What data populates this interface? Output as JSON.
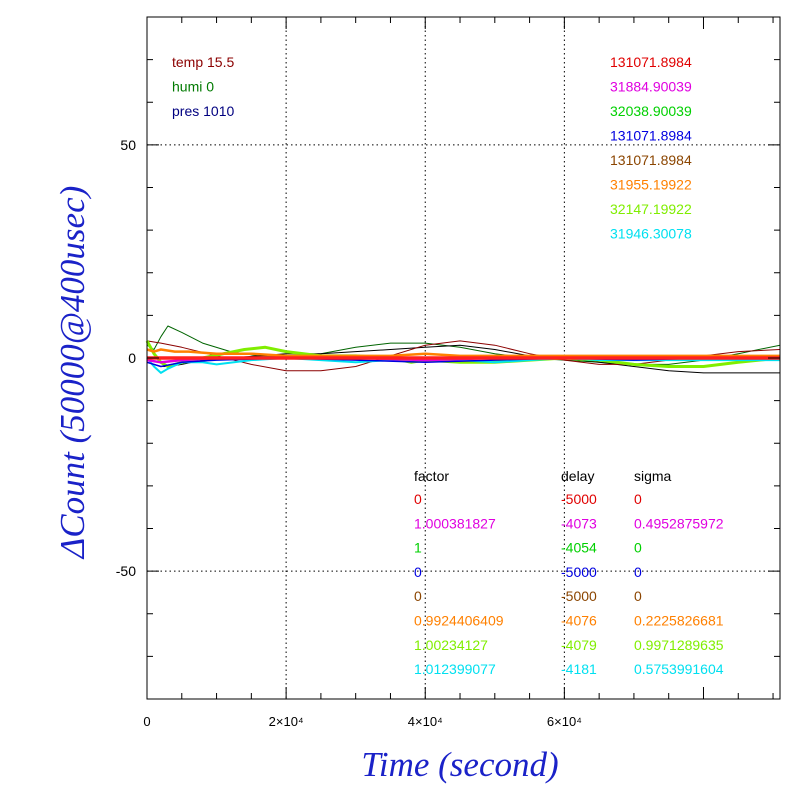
{
  "chart_data": {
    "type": "line",
    "xlabel": "Time (second)",
    "ylabel": "ΔCount (50000@400usec)",
    "xlim": [
      0,
      91000
    ],
    "ylim": [
      -80,
      80
    ],
    "x_ticks": [
      {
        "value": 0,
        "label": "0"
      },
      {
        "value": 20000,
        "label": "2×10⁴"
      },
      {
        "value": 40000,
        "label": "4×10⁴"
      },
      {
        "value": 60000,
        "label": "6×10⁴"
      }
    ],
    "y_ticks": [
      {
        "value": 50,
        "label": "50"
      },
      {
        "value": 0,
        "label": "0"
      },
      {
        "value": -50,
        "label": "-50"
      }
    ],
    "grid": "dotted at major ticks",
    "env_labels": [
      {
        "text": "temp 15.5",
        "color": "#8b0000"
      },
      {
        "text": "humi 0",
        "color": "#007a00"
      },
      {
        "text": "pres 1010",
        "color": "#000080"
      }
    ],
    "channel_values": [
      {
        "text": "131071.8984",
        "color": "#e00000"
      },
      {
        "text": "31884.90039",
        "color": "#e000e0"
      },
      {
        "text": "32038.90039",
        "color": "#00d000"
      },
      {
        "text": "131071.8984",
        "color": "#0000e0"
      },
      {
        "text": "131071.8984",
        "color": "#8b4500"
      },
      {
        "text": "31955.19922",
        "color": "#ff8000"
      },
      {
        "text": "32147.19922",
        "color": "#80ee00"
      },
      {
        "text": "31946.30078",
        "color": "#00e0f0"
      }
    ],
    "param_table": {
      "headers": [
        "factor",
        "delay",
        "sigma"
      ],
      "rows": [
        {
          "factor": "0",
          "delay": "-5000",
          "sigma": "0",
          "color": "#e00000"
        },
        {
          "factor": "1.000381827",
          "delay": "-4073",
          "sigma": "0.4952875972",
          "color": "#e000e0"
        },
        {
          "factor": "1",
          "delay": "-4054",
          "sigma": "0",
          "color": "#00d000"
        },
        {
          "factor": "0",
          "delay": "-5000",
          "sigma": "0",
          "color": "#0000e0"
        },
        {
          "factor": "0",
          "delay": "-5000",
          "sigma": "0",
          "color": "#8b4500"
        },
        {
          "factor": "0.9924406409",
          "delay": "-4076",
          "sigma": "0.2225826681",
          "color": "#ff8000"
        },
        {
          "factor": "1.00234127",
          "delay": "-4079",
          "sigma": "0.9971289635",
          "color": "#80ee00"
        },
        {
          "factor": "1.012399077",
          "delay": "-4181",
          "sigma": "0.5753991604",
          "color": "#00e0f0"
        }
      ]
    },
    "series": [
      {
        "color": "#006400",
        "width": 1,
        "x": [
          0,
          1000,
          2000,
          3000,
          5000,
          8000,
          12000,
          16000,
          20000,
          25000,
          30000,
          35000,
          40000,
          45000,
          50000,
          55000,
          60000,
          65000,
          70000,
          75000,
          80000,
          85000,
          91000
        ],
        "y": [
          3,
          2,
          5,
          7.5,
          6,
          3.5,
          1.5,
          0.5,
          0.5,
          1,
          2.5,
          3.5,
          3.5,
          2.5,
          1,
          0,
          -0.5,
          -1,
          -1.5,
          -1.5,
          -0.5,
          1,
          3
        ]
      },
      {
        "color": "#000000",
        "width": 1,
        "x": [
          0,
          1000,
          2000,
          3000,
          5000,
          8000,
          12000,
          16000,
          20000,
          25000,
          30000,
          35000,
          40000,
          45000,
          50000,
          55000,
          60000,
          65000,
          70000,
          75000,
          80000,
          85000,
          91000
        ],
        "y": [
          -1,
          -1.5,
          -2,
          -2,
          -1.5,
          -0.5,
          0,
          0.5,
          1,
          1,
          1.5,
          2,
          2.5,
          3,
          2,
          0.5,
          0,
          -1,
          -2,
          -3,
          -3.5,
          -3.5,
          -3.5
        ]
      },
      {
        "color": "#8b0000",
        "width": 1,
        "x": [
          0,
          2000,
          5000,
          10000,
          15000,
          20000,
          25000,
          30000,
          35000,
          40000,
          45000,
          50000,
          55000,
          60000,
          65000,
          70000,
          75000,
          80000,
          85000,
          91000
        ],
        "y": [
          4,
          3.5,
          2.5,
          0.5,
          -1.5,
          -3,
          -3,
          -2,
          0.5,
          3,
          4,
          3,
          1,
          -0.5,
          -1.5,
          -1.5,
          -0.5,
          0.5,
          1.5,
          2
        ]
      },
      {
        "color": "#80ee00",
        "width": 3,
        "x": [
          0,
          1000,
          2000,
          3000,
          5000,
          8000,
          11000,
          14000,
          17000,
          20000,
          25000,
          30000,
          35000,
          38000,
          40000,
          45000,
          50000,
          55000,
          60000,
          65000,
          70000,
          75000,
          80000,
          85000,
          91000
        ],
        "y": [
          4,
          1,
          -1,
          -2,
          -1,
          0,
          1,
          2,
          2.5,
          1.5,
          0.5,
          0.5,
          0,
          -1,
          -0.5,
          -1,
          -1,
          -0.5,
          0,
          -0.5,
          -1.5,
          -2,
          -2,
          -1,
          0
        ]
      },
      {
        "color": "#00e0f0",
        "width": 2,
        "x": [
          0,
          1000,
          2000,
          3000,
          5000,
          8000,
          10000,
          15000,
          20000,
          25000,
          30000,
          35000,
          40000,
          45000,
          50000,
          55000,
          60000,
          65000,
          70000,
          75000,
          80000,
          85000,
          91000
        ],
        "y": [
          0,
          -2,
          -3.5,
          -2.5,
          -1,
          -1,
          -1.5,
          -0.5,
          0,
          -0.5,
          -1,
          -0.5,
          0,
          -0.5,
          -1,
          -0.5,
          0,
          -0.5,
          -0.5,
          -0.5,
          -0.5,
          -0.5,
          -0.5
        ]
      },
      {
        "color": "#0000e0",
        "width": 1.5,
        "x": [
          0,
          2000,
          5000,
          10000,
          20000,
          30000,
          40000,
          50000,
          60000,
          70000,
          80000,
          91000
        ],
        "y": [
          -1,
          -2,
          -1,
          -0.5,
          0,
          -0.5,
          -1,
          -0.5,
          0,
          -0.5,
          0,
          0
        ]
      },
      {
        "color": "#ff8000",
        "width": 2.5,
        "x": [
          0,
          1000,
          2000,
          4000,
          6000,
          10000,
          15000,
          20000,
          25000,
          30000,
          35000,
          40000,
          45000,
          50000,
          55000,
          60000,
          65000,
          70000,
          75000,
          80000,
          85000,
          91000
        ],
        "y": [
          2,
          1.5,
          2,
          1.5,
          1.5,
          1,
          1,
          0.5,
          0.5,
          0.5,
          0.5,
          1,
          0.5,
          0.5,
          0.5,
          0.5,
          0.5,
          0.5,
          0.5,
          0.5,
          0.5,
          0.5
        ]
      },
      {
        "color": "#e000e0",
        "width": 2.5,
        "x": [
          0,
          2000,
          5000,
          10000,
          20000,
          30000,
          40000,
          50000,
          60000,
          70000,
          80000,
          91000
        ],
        "y": [
          -0.5,
          -1,
          -0.5,
          0,
          0,
          0,
          -0.5,
          0,
          0,
          0,
          0,
          0
        ]
      },
      {
        "color": "#ff2020",
        "width": 3.5,
        "x": [
          0,
          5000,
          10000,
          20000,
          30000,
          40000,
          50000,
          60000,
          70000,
          80000,
          91000
        ],
        "y": [
          0,
          0,
          0,
          0,
          0,
          0,
          0,
          0,
          0,
          0,
          0
        ]
      }
    ]
  }
}
